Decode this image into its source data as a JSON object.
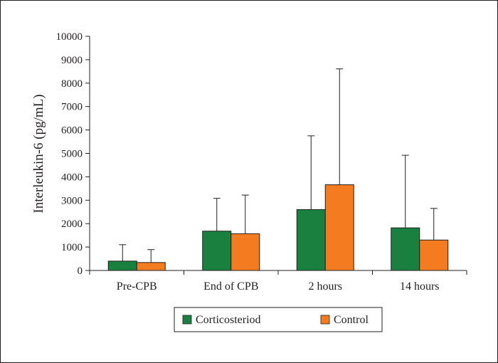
{
  "chart_data": {
    "type": "bar",
    "title": "",
    "xlabel": "",
    "ylabel": "Interleukin-6 (pg/mL)",
    "ylim": [
      0,
      10000
    ],
    "yticks": [
      0,
      1000,
      2000,
      3000,
      4000,
      5000,
      6000,
      7000,
      8000,
      9000,
      10000
    ],
    "categories": [
      "Pre-CPB",
      "End of CPB",
      "2 hours",
      "14 hours"
    ],
    "error_bars": "upper",
    "series": [
      {
        "name": "Corticosteriod",
        "color": "#1a8040",
        "values": [
          400,
          1680,
          2600,
          1820
        ],
        "errors": [
          700,
          1400,
          3150,
          3100
        ]
      },
      {
        "name": "Control",
        "color": "#f47b20",
        "values": [
          340,
          1570,
          3660,
          1300
        ],
        "errors": [
          550,
          1650,
          4950,
          1350
        ]
      }
    ],
    "legend": {
      "position": "bottom-center"
    }
  }
}
